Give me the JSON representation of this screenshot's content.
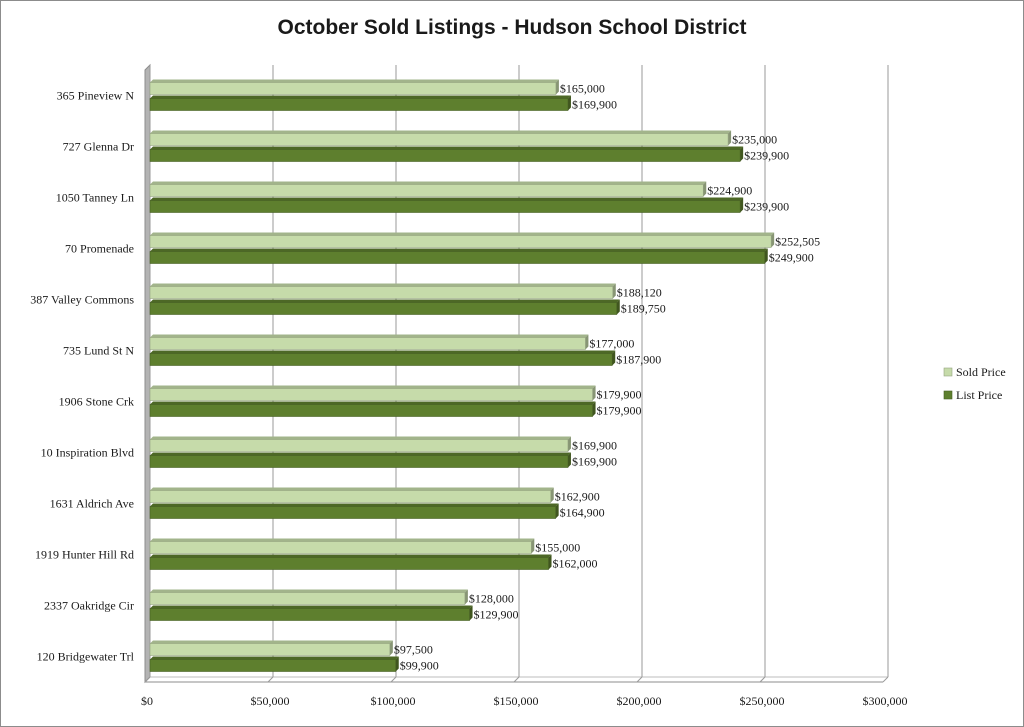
{
  "chart_data": {
    "type": "bar",
    "orientation": "horizontal",
    "title": "October Sold Listings - Hudson School District",
    "categories": [
      "365 Pineview N",
      "727 Glenna Dr",
      "1050 Tanney Ln",
      "70 Promenade",
      "387 Valley Commons",
      "735 Lund St N",
      "1906 Stone Crk",
      "10 Inspiration Blvd",
      "1631 Aldrich Ave",
      "1919 Hunter Hill Rd",
      "2337 Oakridge Cir",
      "120 Bridgewater Trl"
    ],
    "series": [
      {
        "name": "Sold Price",
        "color": "#c6dbaa",
        "values": [
          165000,
          235000,
          224900,
          252505,
          188120,
          177000,
          179900,
          169900,
          162900,
          155000,
          128000,
          97500
        ],
        "labels": [
          "$165,000",
          "$235,000",
          "$224,900",
          "$252,505",
          "$188,120",
          "$177,000",
          "$179,900",
          "$169,900",
          "$162,900",
          "$155,000",
          "$128,000",
          "$97,500"
        ]
      },
      {
        "name": "List Price",
        "color": "#5e7f2e",
        "values": [
          169900,
          239900,
          239900,
          249900,
          189750,
          187900,
          179900,
          169900,
          164900,
          162000,
          129900,
          99900
        ],
        "labels": [
          "$169,900",
          "$239,900",
          "$239,900",
          "$249,900",
          "$189,750",
          "$187,900",
          "$179,900",
          "$169,900",
          "$164,900",
          "$162,000",
          "$129,900",
          "$99,900"
        ]
      }
    ],
    "x_ticks": [
      0,
      50000,
      100000,
      150000,
      200000,
      250000,
      300000
    ],
    "x_tick_labels": [
      "$0",
      "$50,000",
      "$100,000",
      "$150,000",
      "$200,000",
      "$250,000",
      "$300,000"
    ],
    "xlim": [
      0,
      300000
    ],
    "grid": true,
    "legend_position": "right"
  }
}
